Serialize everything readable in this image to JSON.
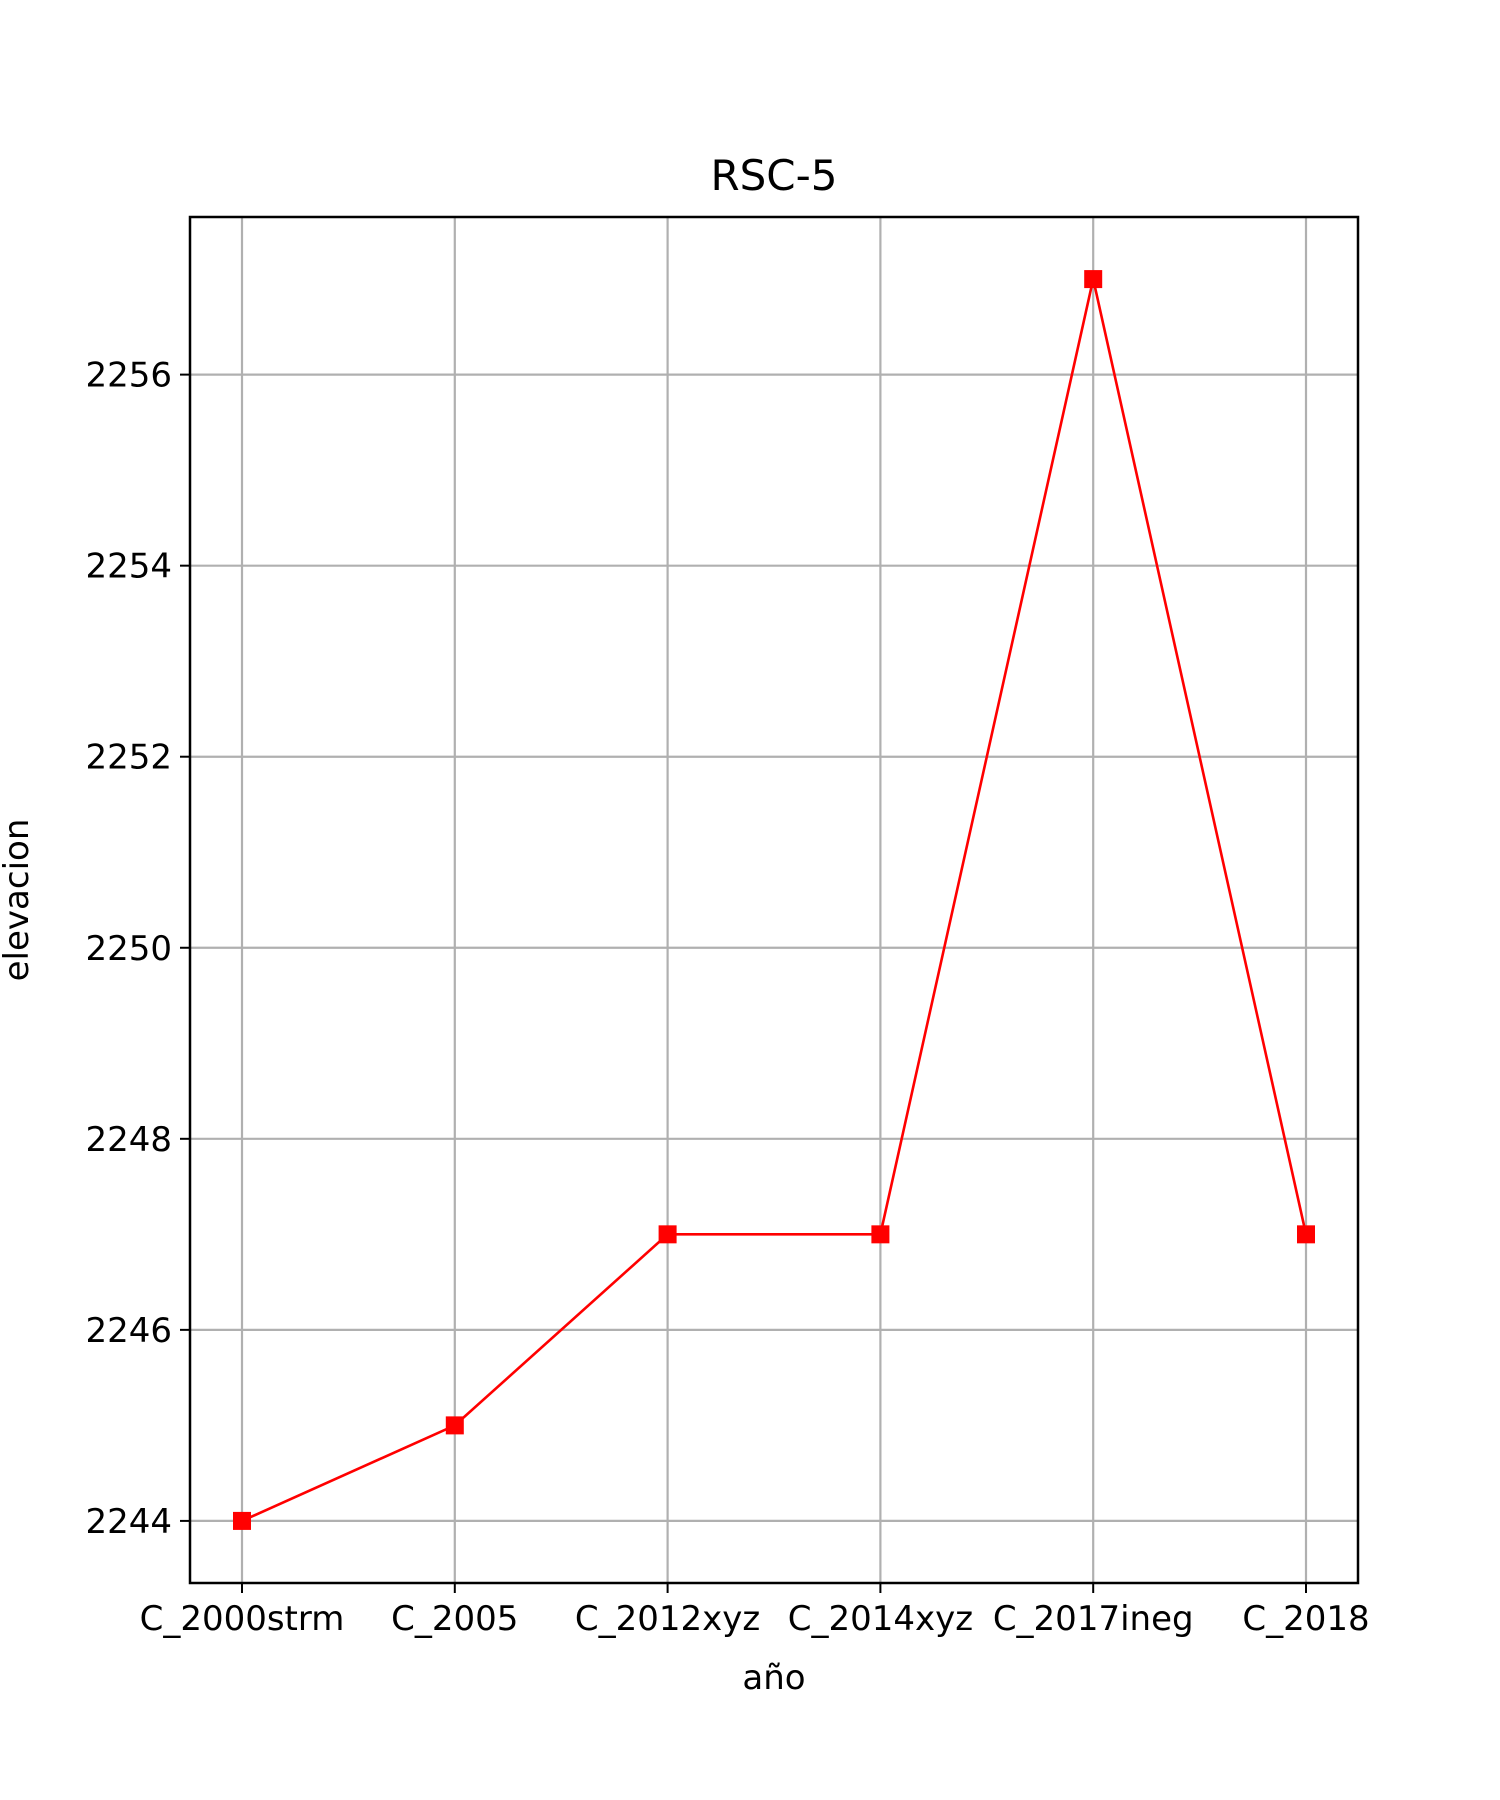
{
  "chart_data": {
    "type": "line",
    "title": "RSC-5",
    "xlabel": "año",
    "ylabel": "elevacion",
    "categories": [
      "C_2000strm",
      "C_2005",
      "C_2012xyz",
      "C_2014xyz",
      "C_2017ineg",
      "C_2018"
    ],
    "series": [
      {
        "values": [
          2244,
          2245,
          2247,
          2247,
          2257,
          2247
        ],
        "color": "#ff0000",
        "marker": "square"
      }
    ],
    "ylim": [
      2243.35,
      2257.65
    ],
    "yticks": [
      2244,
      2246,
      2248,
      2250,
      2252,
      2254,
      2256
    ],
    "grid": true,
    "grid_color": "#b0b0b0",
    "legend": false
  }
}
